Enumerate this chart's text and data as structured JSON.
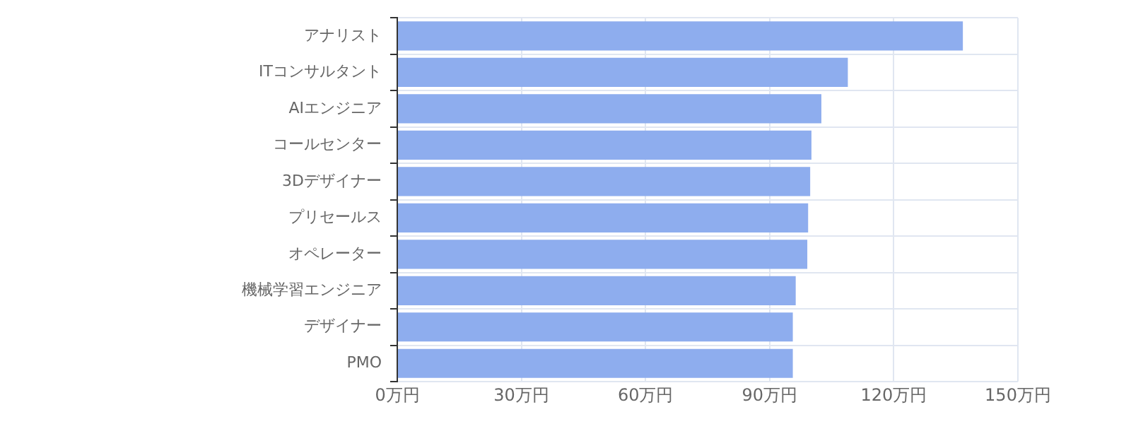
{
  "chart_data": {
    "type": "bar",
    "orientation": "horizontal",
    "categories": [
      "アナリスト",
      "ITコンサルタント",
      "AIエンジニア",
      "コールセンター",
      "3Dデザイナー",
      "プリセールス",
      "オペレーター",
      "機械学習エンジニア",
      "デザイナー",
      "PMO"
    ],
    "values": [
      136.7,
      108.9,
      102.5,
      100.1,
      99.8,
      99.3,
      99.1,
      96.3,
      95.6,
      95.6
    ],
    "color": "#8eadee",
    "xlim": [
      0,
      150
    ],
    "xticks": [
      {
        "value": 0,
        "label": "0万円"
      },
      {
        "value": 30,
        "label": "30万円"
      },
      {
        "value": 60,
        "label": "60万円"
      },
      {
        "value": 90,
        "label": "90万円"
      },
      {
        "value": 120,
        "label": "120万円"
      },
      {
        "value": 150,
        "label": "150万円"
      }
    ],
    "grid": true
  }
}
